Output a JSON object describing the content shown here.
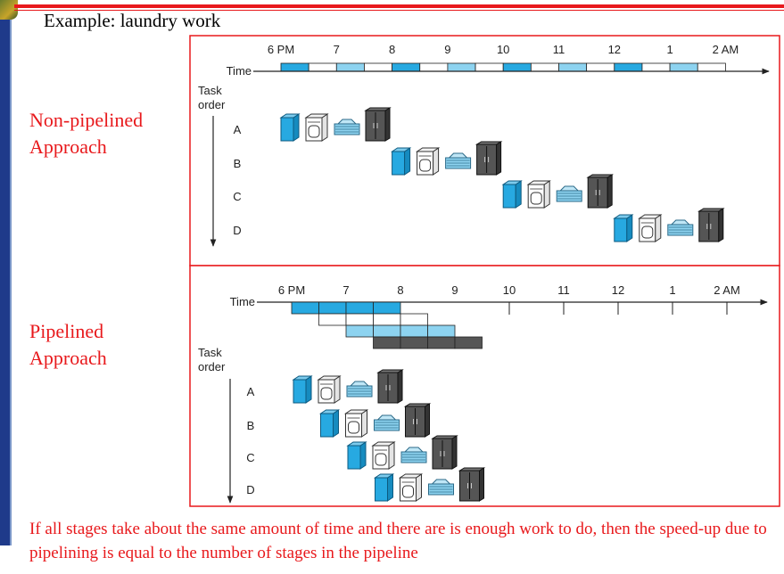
{
  "slide": {
    "title": "Example: laundry work",
    "non_pipelined_label": [
      "Non-pipelined",
      "Approach"
    ],
    "pipelined_label": [
      "Pipelined",
      "Approach"
    ],
    "footer": "If all stages take about the same amount of time and there are is enough work to do, then the speed-up due to pipelining is equal to the number of stages in the pipeline"
  },
  "diagrams": {
    "time_label": "Time",
    "task_order_label": [
      "Task",
      "order"
    ],
    "time_ticks": [
      "6 PM",
      "7",
      "8",
      "9",
      "10",
      "11",
      "12",
      "1",
      "2 AM"
    ],
    "tasks": [
      "A",
      "B",
      "C",
      "D"
    ],
    "stages": [
      "washer",
      "dryer",
      "folder",
      "closet"
    ],
    "stage_colors": [
      "#27a9e1",
      "#ffffff",
      "#8dd3f0",
      "#555555"
    ],
    "accent_colors": {
      "border": "#e8191c",
      "label_text": "#e8191c"
    },
    "non_pipelined": {
      "start_hour": [
        0,
        2,
        4,
        6
      ]
    },
    "pipelined": {
      "start_hour": [
        0,
        0.5,
        1,
        1.5
      ]
    }
  }
}
